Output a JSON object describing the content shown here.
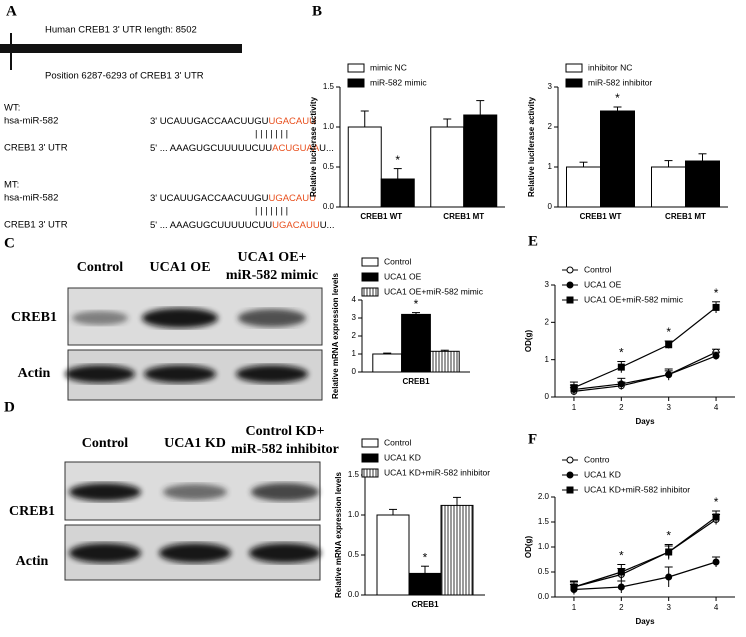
{
  "panel_labels": [
    "A",
    "B",
    "C",
    "D",
    "E",
    "F"
  ],
  "sequence_panel": {
    "header": "Human CREB1  3' UTR length: 8502",
    "position": "Position 6287-6293 of CREB1 3' UTR",
    "groups": [
      {
        "title": "WT:",
        "mirna": {
          "name": "hsa-miR-582",
          "seq": "3' UCAUUGACCAACUUGU",
          "seed": "UGACAUU"
        },
        "pairing": "| | | | | | |",
        "utr": {
          "name": "CREB1 3' UTR",
          "seq": "5' ... AAAGUGCUUUUUCUU",
          "seed": "ACUGUAA",
          "tail": "U..."
        }
      },
      {
        "title": "MT:",
        "mirna": {
          "name": "hsa-miR-582",
          "seq": "3' UCAUUGACCAACUUGU",
          "seed": "UGACAUU"
        },
        "pairing": "| | | | | | |",
        "utr": {
          "name": "CREB1 3' UTR",
          "seq": "5' ... AAAGUGCUUUUUCUU",
          "seed": "UGACAUU",
          "tail": "U..."
        }
      }
    ]
  },
  "blots": [
    {
      "lanes": [
        [
          "Control"
        ],
        [
          "UCA1 OE"
        ],
        [
          "UCA1 OE+",
          "miR-582 mimic"
        ]
      ],
      "rows": [
        "CREB1",
        "Actin"
      ]
    },
    {
      "lanes": [
        [
          "Control"
        ],
        [
          "UCA1 KD"
        ],
        [
          "Control KD+",
          "miR-582 inhibitor"
        ]
      ],
      "rows": [
        "CREB1",
        "Actin"
      ]
    }
  ],
  "chart_data": [
    {
      "type": "bar",
      "ylabel": "Relative luciferase activity",
      "categories": [
        "CREB1 WT",
        "CREB1 MT"
      ],
      "series": [
        {
          "name": "mimic NC",
          "color": "#ffffff",
          "values": [
            1.0,
            1.0
          ],
          "errors": [
            0.2,
            0.1
          ]
        },
        {
          "name": "miR-582 mimic",
          "color": "#000000",
          "values": [
            0.35,
            1.15
          ],
          "errors": [
            0.13,
            0.18
          ]
        }
      ],
      "ylim": [
        0,
        1.5
      ],
      "yticks": [
        {
          "value": 0,
          "label": "0.0"
        },
        {
          "value": 0.5,
          "label": "0.5"
        },
        {
          "value": 1,
          "label": "1.0"
        },
        {
          "value": 1.5,
          "label": "1.5"
        }
      ],
      "annotations": [
        {
          "text": "*",
          "category": "CREB1 WT",
          "series": "miR-582 mimic"
        }
      ]
    },
    {
      "type": "bar",
      "ylabel": "Relative luciferase activity",
      "categories": [
        "CREB1 WT",
        "CREB1 MT"
      ],
      "series": [
        {
          "name": "inhibitor NC",
          "color": "#ffffff",
          "values": [
            1.0,
            1.0
          ],
          "errors": [
            0.12,
            0.16
          ]
        },
        {
          "name": "miR-582 inhibitor",
          "color": "#000000",
          "values": [
            2.4,
            1.15
          ],
          "errors": [
            0.1,
            0.18
          ]
        }
      ],
      "ylim": [
        0,
        3
      ],
      "yticks": [
        0,
        1,
        2,
        3
      ],
      "annotations": [
        {
          "text": "*",
          "category": "CREB1 WT",
          "series": "miR-582 inhibitor"
        }
      ]
    },
    {
      "type": "bar",
      "ylabel": "Relative mRNA expression levels",
      "categories": [
        "CREB1"
      ],
      "series": [
        {
          "name": "Control",
          "color": "#ffffff",
          "values": [
            1.0
          ],
          "errors": [
            0.05
          ]
        },
        {
          "name": "UCA1 OE",
          "color": "#000000",
          "values": [
            3.2
          ],
          "errors": [
            0.1
          ]
        },
        {
          "name": "UCA1 OE+miR-582 mimic",
          "color": "#ffffff",
          "hatch": true,
          "values": [
            1.15
          ],
          "errors": [
            0.06
          ]
        }
      ],
      "ylim": [
        0,
        4
      ],
      "yticks": [
        0,
        1,
        2,
        3,
        4
      ],
      "annotations": [
        {
          "text": "*",
          "category": "CREB1",
          "series": "UCA1 OE"
        }
      ]
    },
    {
      "type": "line",
      "xlabel": "Days",
      "ylabel": "OD(g)",
      "x": [
        1,
        2,
        3,
        4
      ],
      "xlim": [
        0.6,
        4.4
      ],
      "xticks": [
        1,
        2,
        3,
        4
      ],
      "ylim": [
        0,
        3
      ],
      "yticks": [
        0,
        1,
        2,
        3
      ],
      "series": [
        {
          "name": "Control",
          "color": "#000000",
          "marker": "circle-open",
          "values": [
            0.15,
            0.3,
            0.6,
            1.2
          ],
          "errors": [
            0.1,
            0.1,
            0.1,
            0.08
          ]
        },
        {
          "name": "UCA1 OE",
          "color": "#000000",
          "marker": "circle",
          "values": [
            0.2,
            0.35,
            0.6,
            1.1
          ],
          "errors": [
            0.12,
            0.15,
            0.15,
            0.1
          ]
        },
        {
          "name": "UCA1 OE+miR-582 mimic",
          "color": "#000000",
          "marker": "square",
          "values": [
            0.25,
            0.8,
            1.4,
            2.4
          ],
          "errors": [
            0.15,
            0.15,
            0.1,
            0.15
          ]
        }
      ],
      "annotations": [
        {
          "text": "*",
          "x": 2
        },
        {
          "text": "*",
          "x": 3
        },
        {
          "text": "*",
          "x": 4
        }
      ]
    },
    {
      "type": "bar",
      "ylabel": "Relative mRNA expression levels",
      "categories": [
        "CREB1"
      ],
      "series": [
        {
          "name": "Control",
          "color": "#ffffff",
          "values": [
            1.0
          ],
          "errors": [
            0.07
          ]
        },
        {
          "name": "UCA1 KD",
          "color": "#000000",
          "values": [
            0.27
          ],
          "errors": [
            0.09
          ]
        },
        {
          "name": "UCA1 KD+miR-582 inhibitor",
          "color": "#ffffff",
          "hatch": true,
          "values": [
            1.12
          ],
          "errors": [
            0.1
          ]
        }
      ],
      "ylim": [
        0,
        1.5
      ],
      "yticks": [
        {
          "value": 0,
          "label": "0.0"
        },
        {
          "value": 0.5,
          "label": "0.5"
        },
        {
          "value": 1,
          "label": "1.0"
        },
        {
          "value": 1.5,
          "label": "1.5"
        }
      ],
      "annotations": [
        {
          "text": "*",
          "category": "CREB1",
          "series": "UCA1 KD"
        }
      ]
    },
    {
      "type": "line",
      "xlabel": "Days",
      "ylabel": "OD(g)",
      "x": [
        1,
        2,
        3,
        4
      ],
      "xlim": [
        0.6,
        4.4
      ],
      "xticks": [
        1,
        2,
        3,
        4
      ],
      "ylim": [
        0,
        2
      ],
      "yticks": [
        {
          "value": 0,
          "label": "0.0"
        },
        {
          "value": 0.5,
          "label": "0.5"
        },
        {
          "value": 1,
          "label": "1.0"
        },
        {
          "value": 1.5,
          "label": "1.5"
        },
        {
          "value": 2,
          "label": "2.0"
        }
      ],
      "series": [
        {
          "name": "Contro",
          "color": "#000000",
          "marker": "circle-open",
          "values": [
            0.2,
            0.45,
            0.9,
            1.55
          ],
          "errors": [
            0.1,
            0.12,
            0.12,
            0.1
          ]
        },
        {
          "name": "UCA1 KD",
          "color": "#000000",
          "marker": "circle",
          "values": [
            0.15,
            0.2,
            0.4,
            0.7
          ],
          "errors": [
            0.1,
            0.12,
            0.2,
            0.1
          ]
        },
        {
          "name": "UCA1 KD+miR-582 inhibitor",
          "color": "#000000",
          "marker": "square",
          "values": [
            0.2,
            0.5,
            0.9,
            1.6
          ],
          "errors": [
            0.12,
            0.15,
            0.15,
            0.12
          ]
        }
      ],
      "annotations": [
        {
          "text": "*",
          "x": 2
        },
        {
          "text": "*",
          "x": 3
        },
        {
          "text": "*",
          "x": 4
        }
      ]
    }
  ]
}
